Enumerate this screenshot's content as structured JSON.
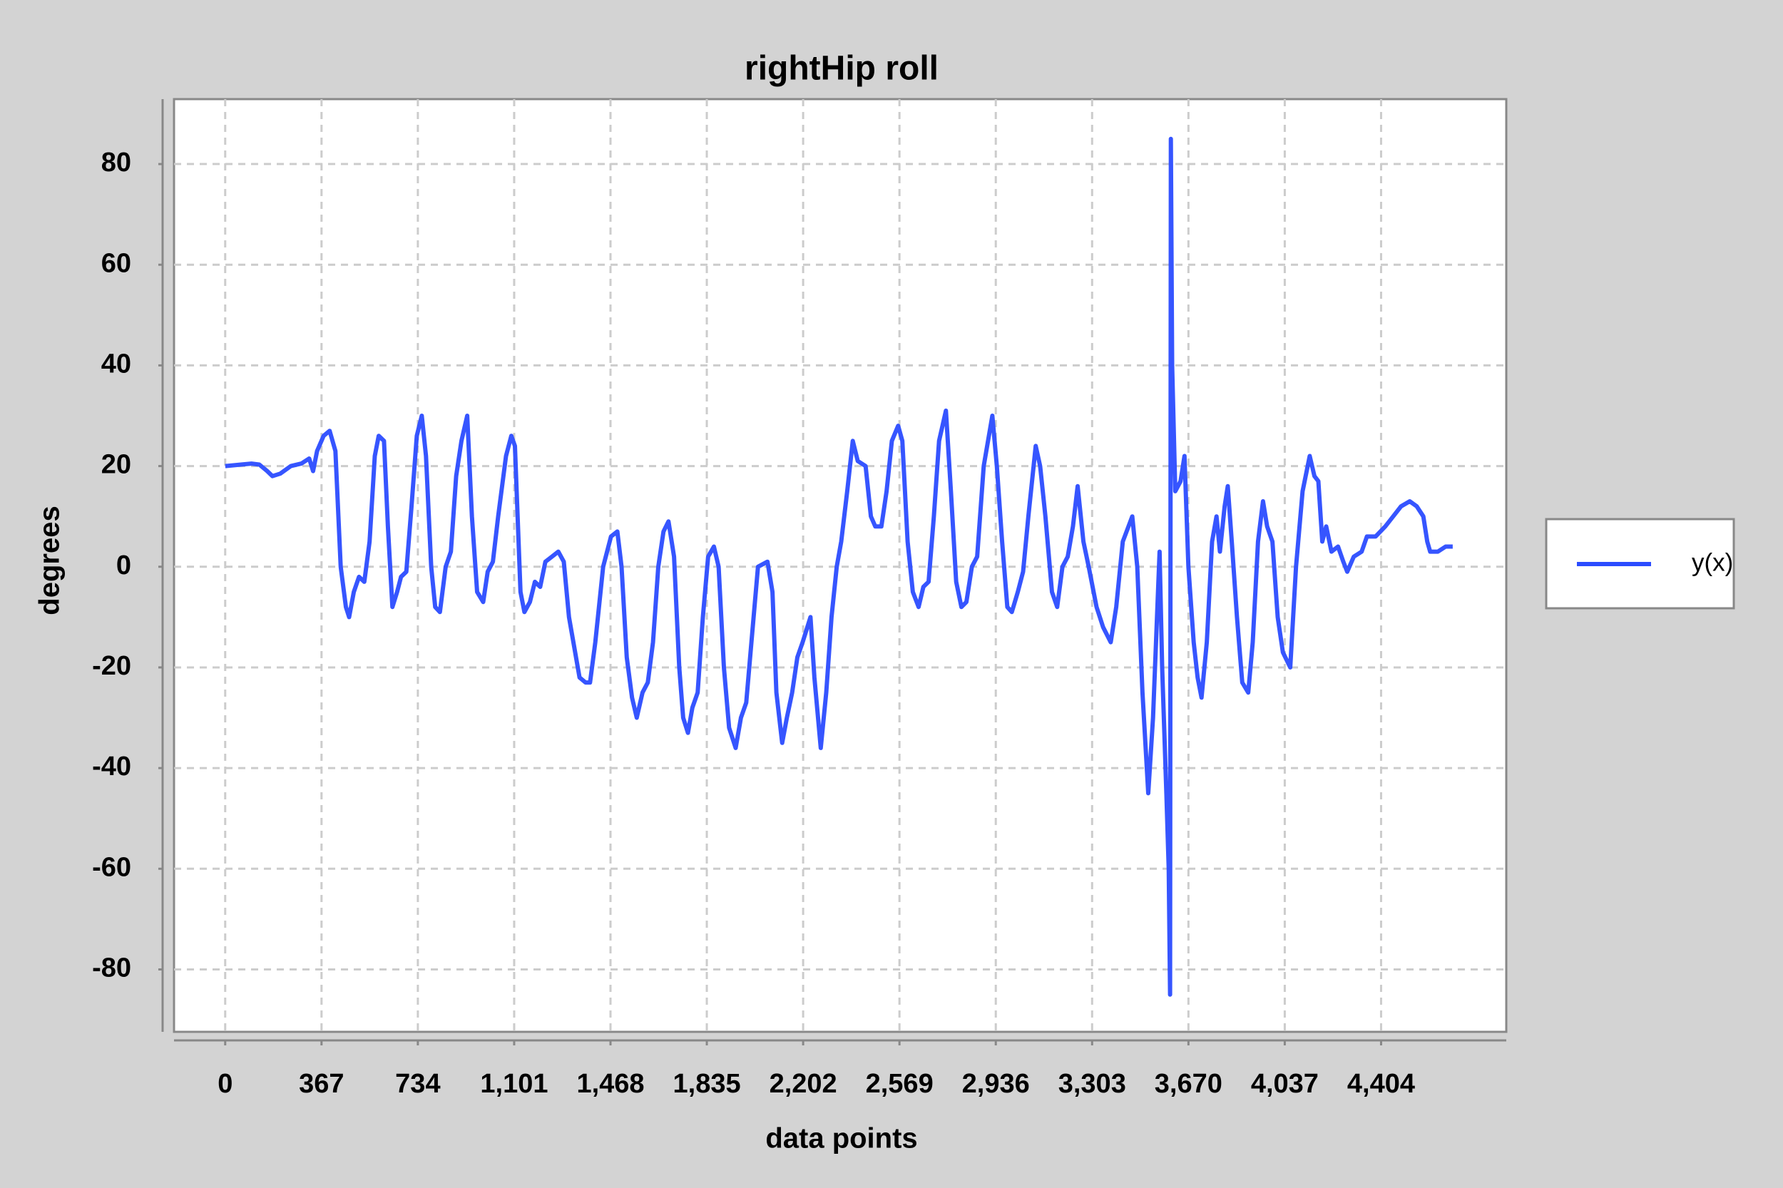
{
  "chart_data": {
    "type": "line",
    "title": "rightHip roll",
    "xlabel": "data points",
    "ylabel": "degrees",
    "x": [
      0,
      60,
      100,
      130,
      160,
      180,
      210,
      250,
      290,
      320,
      335,
      350,
      375,
      398,
      420,
      440,
      460,
      472,
      490,
      510,
      530,
      550,
      570,
      585,
      605,
      620,
      637,
      655,
      670,
      690,
      710,
      730,
      749,
      765,
      785,
      800,
      818,
      840,
      860,
      880,
      900,
      922,
      940,
      960,
      983,
      1000,
      1020,
      1040,
      1070,
      1090,
      1104,
      1125,
      1140,
      1161,
      1180,
      1200,
      1220,
      1245,
      1269,
      1290,
      1310,
      1330,
      1350,
      1373,
      1390,
      1410,
      1440,
      1470,
      1494,
      1510,
      1530,
      1550,
      1568,
      1590,
      1610,
      1630,
      1650,
      1670,
      1689,
      1710,
      1730,
      1745,
      1763,
      1780,
      1800,
      1820,
      1840,
      1862,
      1880,
      1900,
      1920,
      1945,
      1965,
      1985,
      2005,
      2030,
      2066,
      2085,
      2100,
      2122,
      2140,
      2160,
      2180,
      2200,
      2230,
      2245,
      2269,
      2290,
      2310,
      2330,
      2347,
      2370,
      2391,
      2410,
      2440,
      2460,
      2477,
      2500,
      2520,
      2540,
      2564,
      2580,
      2600,
      2620,
      2642,
      2660,
      2680,
      2700,
      2720,
      2746,
      2765,
      2785,
      2805,
      2824,
      2845,
      2865,
      2890,
      2923,
      2940,
      2960,
      2980,
      2997,
      3020,
      3040,
      3060,
      3088,
      3105,
      3125,
      3150,
      3170,
      3190,
      3210,
      3230,
      3248,
      3270,
      3290,
      3320,
      3345,
      3374,
      3395,
      3420,
      3456,
      3475,
      3495,
      3517,
      3535,
      3560,
      3570,
      3586,
      3595,
      3600,
      3603,
      3608,
      3620,
      3640,
      3655,
      3670,
      3690,
      3705,
      3720,
      3740,
      3760,
      3777,
      3790,
      3808,
      3820,
      3835,
      3855,
      3875,
      3898,
      3915,
      3935,
      3954,
      3970,
      3990,
      4010,
      4030,
      4058,
      4080,
      4105,
      4132,
      4150,
      4165,
      4180,
      4195,
      4215,
      4240,
      4260,
      4275,
      4300,
      4330,
      4350,
      4383,
      4420,
      4450,
      4480,
      4513,
      4540,
      4565,
      4580,
      4591,
      4620,
      4650,
      4677
    ],
    "series": [
      {
        "name": "y(x)",
        "color": "#2b4cff",
        "values": [
          20,
          20.3,
          20.5,
          20.3,
          19,
          18,
          18.5,
          20,
          20.5,
          21.5,
          19,
          23,
          26,
          27,
          23,
          0,
          -8,
          -10,
          -5,
          -2,
          -3,
          5,
          22,
          26,
          25,
          8,
          -8,
          -5,
          -2,
          -1,
          12,
          26,
          30,
          22,
          0,
          -8,
          -9,
          0,
          3,
          18,
          25,
          30,
          10,
          -5,
          -7,
          -1,
          1,
          10,
          22,
          26,
          24,
          -5,
          -9,
          -7,
          -3,
          -4,
          1,
          2,
          3,
          1,
          -10,
          -16,
          -22,
          -23,
          -23,
          -15,
          0,
          6,
          7,
          0,
          -18,
          -26,
          -30,
          -25,
          -23,
          -15,
          0,
          7,
          9,
          2,
          -20,
          -30,
          -33,
          -28,
          -25,
          -10,
          2,
          4,
          0,
          -20,
          -32,
          -36,
          -30,
          -27,
          -15,
          0,
          1,
          -5,
          -25,
          -35,
          -30,
          -25,
          -18,
          -15,
          -10,
          -22,
          -36,
          -25,
          -10,
          0,
          5,
          15,
          25,
          21,
          20,
          10,
          8,
          8,
          15,
          25,
          28,
          25,
          5,
          -5,
          -8,
          -4,
          -3,
          10,
          25,
          31,
          15,
          -3,
          -8,
          -7,
          0,
          2,
          20,
          30,
          20,
          5,
          -8,
          -9,
          -5,
          -1,
          10,
          24,
          20,
          10,
          -5,
          -8,
          0,
          2,
          8,
          16,
          5,
          0,
          -8,
          -12,
          -15,
          -8,
          5,
          10,
          0,
          -25,
          -45,
          -30,
          3,
          -20,
          -45,
          -60,
          -85,
          85,
          40,
          15,
          17,
          22,
          0,
          -15,
          -22,
          -26,
          -15,
          5,
          10,
          3,
          12,
          16,
          5,
          -10,
          -23,
          -25,
          -15,
          5,
          13,
          8,
          5,
          -10,
          -17,
          -20,
          0,
          15,
          22,
          18,
          17,
          5,
          8,
          3,
          4,
          1,
          -1,
          2,
          3,
          6,
          6,
          8,
          10,
          12,
          13,
          12,
          10,
          5,
          3,
          3,
          4,
          4
        ]
      }
    ],
    "xlim": [
      -195,
      4881
    ],
    "ylim": [
      -92.4,
      92.9
    ],
    "xticks": [
      0,
      367,
      734,
      {
        "value": 1101,
        "label": "1,101"
      },
      {
        "value": 1468,
        "label": "1,468"
      },
      {
        "value": 1835,
        "label": "1,835"
      },
      {
        "value": 2202,
        "label": "2,202"
      },
      {
        "value": 2569,
        "label": "2,569"
      },
      {
        "value": 2936,
        "label": "2,936"
      },
      {
        "value": 3303,
        "label": "3,303"
      },
      {
        "value": 3670,
        "label": "3,670"
      },
      {
        "value": 4037,
        "label": "4,037"
      },
      {
        "value": 4404,
        "label": "4,404"
      }
    ],
    "yticks": [
      -80,
      -60,
      -40,
      -20,
      0,
      20,
      40,
      60,
      80
    ],
    "grid": true,
    "legend": "right"
  }
}
